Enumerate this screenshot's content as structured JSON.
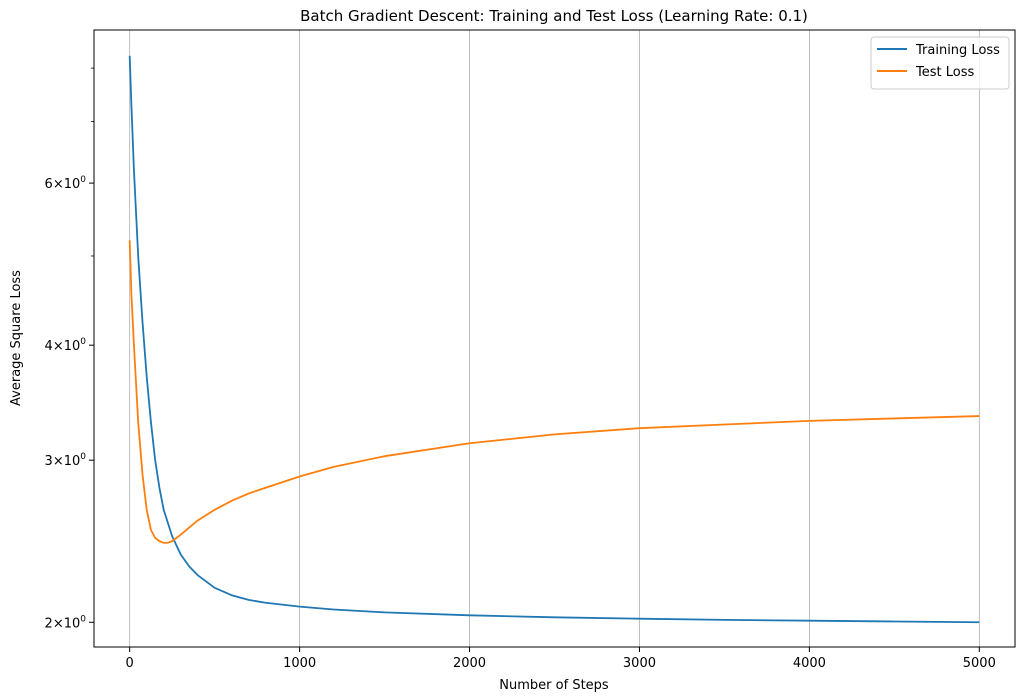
{
  "chart_data": {
    "type": "line",
    "title": "Batch Gradient Descent: Training and Test Loss (Learning Rate: 0.1)",
    "xlabel": "Number of Steps",
    "ylabel": "Average Square Loss",
    "xlim": [
      -210,
      5210
    ],
    "ylim": [
      1.88,
      8.8
    ],
    "yscale": "log",
    "grid": "x-major",
    "legend_position": "top-right",
    "x_ticks": [
      {
        "value": 0,
        "label": "0"
      },
      {
        "value": 1000,
        "label": "1000"
      },
      {
        "value": 2000,
        "label": "2000"
      },
      {
        "value": 3000,
        "label": "3000"
      },
      {
        "value": 4000,
        "label": "4000"
      },
      {
        "value": 5000,
        "label": "5000"
      }
    ],
    "y_ticks": [
      {
        "value": 2,
        "base": "2",
        "exp": "0"
      },
      {
        "value": 3,
        "base": "3",
        "exp": "0"
      },
      {
        "value": 4,
        "base": "4",
        "exp": "0"
      },
      {
        "value": 6,
        "base": "6",
        "exp": "0"
      }
    ],
    "y_minor_ticks": [
      5,
      7,
      8
    ],
    "series": [
      {
        "name": "Training Loss",
        "color": "#1f77b4",
        "x": [
          0,
          10,
          25,
          50,
          75,
          100,
          125,
          150,
          175,
          200,
          250,
          300,
          350,
          400,
          500,
          600,
          700,
          800,
          1000,
          1200,
          1500,
          2000,
          2500,
          3000,
          3500,
          4000,
          4500,
          5000
        ],
        "y": [
          8.25,
          7.3,
          6.2,
          5.0,
          4.25,
          3.7,
          3.3,
          3.0,
          2.8,
          2.65,
          2.48,
          2.37,
          2.3,
          2.25,
          2.18,
          2.14,
          2.115,
          2.1,
          2.08,
          2.065,
          2.05,
          2.035,
          2.025,
          2.018,
          2.012,
          2.008,
          2.004,
          2.0
        ]
      },
      {
        "name": "Test Loss",
        "color": "#ff7f0e",
        "x": [
          0,
          10,
          25,
          50,
          75,
          100,
          125,
          150,
          175,
          200,
          225,
          250,
          300,
          400,
          500,
          600,
          700,
          800,
          1000,
          1200,
          1500,
          2000,
          2500,
          3000,
          3500,
          4000,
          4500,
          5000
        ],
        "y": [
          5.2,
          4.55,
          4.0,
          3.3,
          2.9,
          2.65,
          2.52,
          2.47,
          2.45,
          2.44,
          2.44,
          2.45,
          2.49,
          2.58,
          2.65,
          2.71,
          2.76,
          2.8,
          2.88,
          2.95,
          3.03,
          3.13,
          3.2,
          3.25,
          3.28,
          3.31,
          3.33,
          3.35
        ]
      }
    ]
  }
}
